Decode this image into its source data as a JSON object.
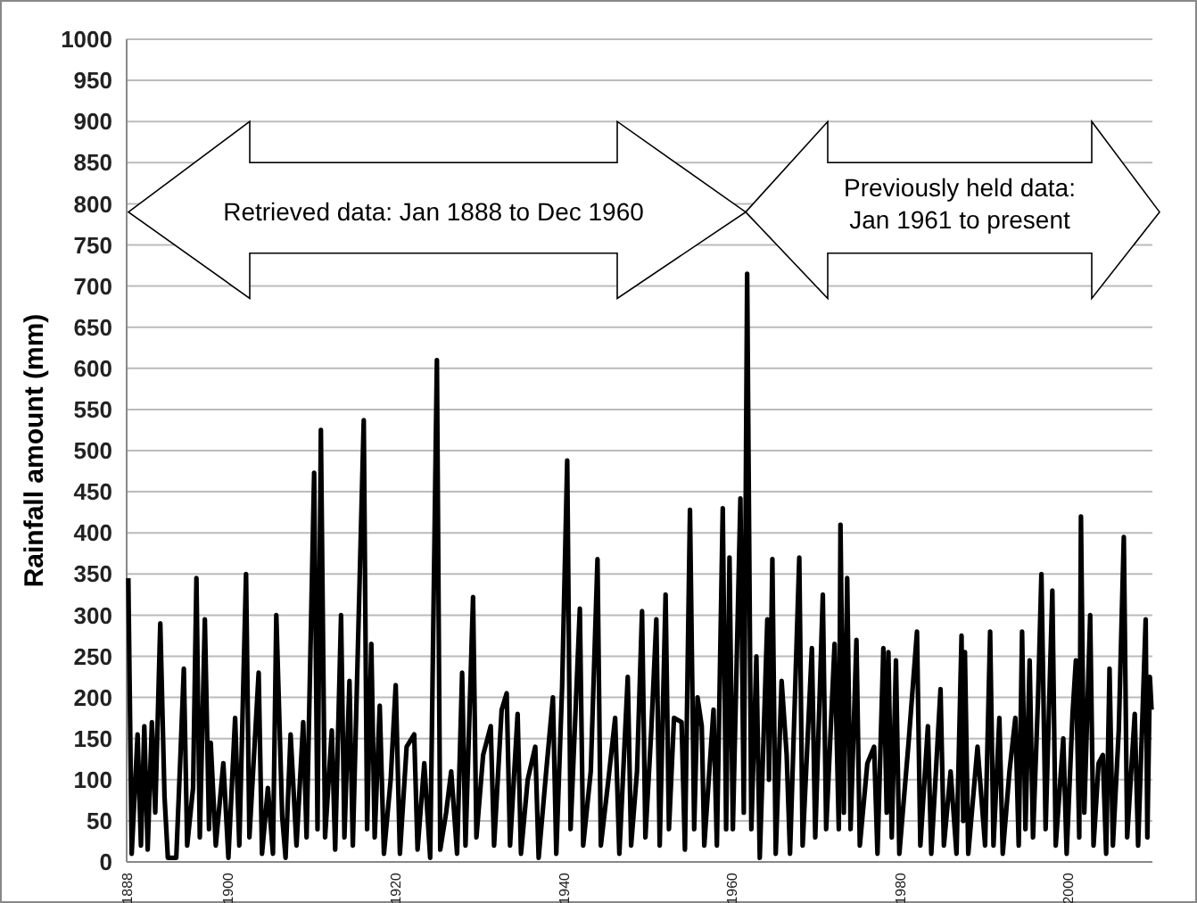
{
  "chart_data": {
    "type": "line",
    "ylabel": "Rainfall amount (mm)",
    "xlim": [
      1888,
      2010
    ],
    "xticks": [
      1888,
      1900,
      1920,
      1940,
      1960,
      1980,
      2000
    ],
    "ylim": [
      0,
      1000
    ],
    "yticks": [
      0,
      50,
      100,
      150,
      200,
      250,
      300,
      350,
      400,
      450,
      500,
      550,
      600,
      650,
      700,
      750,
      800,
      850,
      900,
      950,
      1000
    ],
    "grid": "y",
    "marker": "none",
    "line_style": "solid",
    "annotations": [
      "Retrieved data: Jan 1888 to Dec 1960",
      "Previously held data:\nJan 1961 to present"
    ],
    "series": [
      {
        "color": "#000000",
        "x": [
          1888.2,
          1888.6,
          1889.3,
          1889.7,
          1890.1,
          1890.5,
          1891.0,
          1891.4,
          1892.0,
          1892.5,
          1892.9,
          1893.9,
          1894.4,
          1894.8,
          1895.2,
          1895.9,
          1896.3,
          1896.7,
          1897.3,
          1897.8,
          1898.0,
          1898.6,
          1899.5,
          1900.1,
          1900.9,
          1901.4,
          1902.2,
          1902.6,
          1903.7,
          1904.1,
          1904.8,
          1905.4,
          1905.8,
          1906.5,
          1906.9,
          1907.5,
          1908.2,
          1909.0,
          1909.4,
          1910.3,
          1910.7,
          1911.1,
          1911.6,
          1912.4,
          1912.8,
          1913.5,
          1913.9,
          1914.5,
          1914.9,
          1916.2,
          1916.6,
          1917.1,
          1917.5,
          1918.1,
          1918.6,
          1919.4,
          1920.0,
          1920.5,
          1921.3,
          1922.2,
          1922.6,
          1923.4,
          1924.1,
          1924.9,
          1925.3,
          1926.0,
          1926.6,
          1927.3,
          1927.9,
          1928.3,
          1929.2,
          1929.6,
          1930.4,
          1931.3,
          1931.7,
          1932.6,
          1933.2,
          1933.6,
          1934.5,
          1934.9,
          1935.7,
          1936.6,
          1937.0,
          1937.9,
          1938.7,
          1939.1,
          1939.8,
          1940.4,
          1940.8,
          1941.9,
          1942.3,
          1943.2,
          1944.0,
          1944.4,
          1945.3,
          1946.1,
          1946.6,
          1947.6,
          1948.0,
          1948.7,
          1949.3,
          1949.7,
          1950.4,
          1951.0,
          1951.4,
          1952.1,
          1952.5,
          1953.1,
          1954.0,
          1954.4,
          1955.0,
          1955.5,
          1955.9,
          1956.4,
          1956.7,
          1957.8,
          1958.2,
          1958.9,
          1959.3,
          1959.7,
          1960.1,
          1961.0,
          1961.4,
          1961.8,
          1962.3,
          1962.9,
          1963.3,
          1964.2,
          1964.4,
          1964.8,
          1965.2,
          1965.9,
          1966.5,
          1966.9,
          1968.0,
          1968.4,
          1969.5,
          1969.9,
          1970.8,
          1971.2,
          1972.2,
          1972.7,
          1972.9,
          1973.3,
          1973.7,
          1974.1,
          1974.8,
          1975.2,
          1976.1,
          1976.9,
          1977.3,
          1978.0,
          1978.4,
          1978.6,
          1979.0,
          1979.5,
          1979.9,
          1981.0,
          1982.0,
          1982.4,
          1983.3,
          1983.7,
          1984.8,
          1985.2,
          1986.0,
          1986.7,
          1987.3,
          1987.5,
          1987.7,
          1988.1,
          1989.2,
          1990.1,
          1990.7,
          1991.1,
          1991.8,
          1992.2,
          1993.0,
          1993.7,
          1994.1,
          1994.5,
          1994.9,
          1995.4,
          1995.8,
          1996.4,
          1996.8,
          1997.3,
          1998.1,
          1998.5,
          1999.4,
          1999.8,
          2000.5,
          2000.9,
          2001.3,
          2001.5,
          2001.9,
          2002.6,
          2003.0,
          2003.6,
          2004.1,
          2004.5,
          2004.9,
          2005.3,
          2006.0,
          2006.6,
          2007.0,
          2007.9,
          2008.3,
          2009.2,
          2009.4,
          2009.7,
          2009.9
        ],
        "values": [
          345,
          10,
          155,
          20,
          165,
          15,
          170,
          60,
          290,
          80,
          5,
          5,
          130,
          235,
          20,
          90,
          345,
          30,
          295,
          40,
          145,
          20,
          120,
          5,
          175,
          20,
          350,
          30,
          230,
          10,
          90,
          10,
          300,
          55,
          5,
          155,
          20,
          170,
          30,
          473,
          40,
          525,
          30,
          160,
          15,
          300,
          30,
          220,
          20,
          537,
          40,
          265,
          30,
          190,
          10,
          100,
          215,
          10,
          140,
          155,
          15,
          120,
          5,
          610,
          15,
          60,
          110,
          10,
          230,
          20,
          322,
          30,
          130,
          165,
          20,
          185,
          205,
          20,
          180,
          10,
          100,
          140,
          5,
          110,
          200,
          10,
          215,
          488,
          40,
          308,
          20,
          110,
          368,
          20,
          100,
          175,
          10,
          225,
          20,
          110,
          305,
          30,
          160,
          295,
          20,
          325,
          40,
          175,
          170,
          15,
          428,
          40,
          200,
          165,
          20,
          185,
          20,
          430,
          40,
          370,
          40,
          442,
          60,
          715,
          40,
          250,
          5,
          295,
          100,
          368,
          10,
          220,
          130,
          10,
          370,
          20,
          260,
          30,
          325,
          40,
          265,
          40,
          410,
          60,
          345,
          40,
          270,
          20,
          120,
          140,
          10,
          260,
          60,
          255,
          30,
          245,
          10,
          145,
          280,
          20,
          165,
          10,
          210,
          20,
          110,
          10,
          275,
          50,
          255,
          10,
          140,
          20,
          280,
          20,
          175,
          10,
          110,
          175,
          20,
          280,
          40,
          245,
          30,
          200,
          350,
          40,
          330,
          20,
          150,
          10,
          180,
          245,
          30,
          420,
          60,
          300,
          20,
          120,
          130,
          10,
          235,
          20,
          160,
          395,
          30,
          180,
          20,
          295,
          30,
          225,
          185
        ]
      }
    ]
  }
}
